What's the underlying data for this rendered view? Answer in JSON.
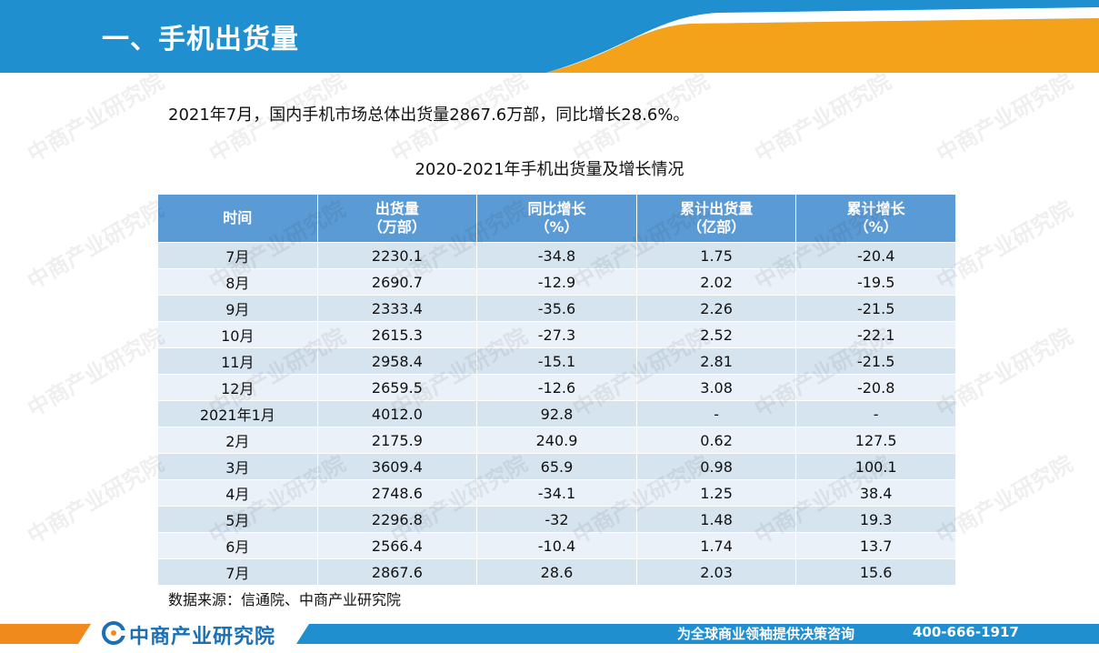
{
  "header": {
    "title": "一、手机出货量"
  },
  "summary": "2021年7月，国内手机市场总体出货量2867.6万部，同比增长28.6%。",
  "table_title": "2020-2021年手机出货量及增长情况",
  "columns": [
    [
      "时间",
      ""
    ],
    [
      "出货量",
      "（万部）"
    ],
    [
      "同比增长",
      "（%）"
    ],
    [
      "累计出货量",
      "（亿部）"
    ],
    [
      "累计增长",
      "（%）"
    ]
  ],
  "rows": [
    [
      "7月",
      "2230.1",
      "-34.8",
      "1.75",
      "-20.4"
    ],
    [
      "8月",
      "2690.7",
      "-12.9",
      "2.02",
      "-19.5"
    ],
    [
      "9月",
      "2333.4",
      "-35.6",
      "2.26",
      "-21.5"
    ],
    [
      "10月",
      "2615.3",
      "-27.3",
      "2.52",
      "-22.1"
    ],
    [
      "11月",
      "2958.4",
      "-15.1",
      "2.81",
      "-21.5"
    ],
    [
      "12月",
      "2659.5",
      "-12.6",
      "3.08",
      "-20.8"
    ],
    [
      "2021年1月",
      "4012.0",
      "92.8",
      "-",
      "-"
    ],
    [
      "2月",
      "2175.9",
      "240.9",
      "0.62",
      "127.5"
    ],
    [
      "3月",
      "3609.4",
      "65.9",
      "0.98",
      "100.1"
    ],
    [
      "4月",
      "2748.6",
      "-34.1",
      "1.25",
      "38.4"
    ],
    [
      "5月",
      "2296.8",
      "-32",
      "1.48",
      "19.3"
    ],
    [
      "6月",
      "2566.4",
      "-10.4",
      "1.74",
      "13.7"
    ],
    [
      "7月",
      "2867.6",
      "28.6",
      "2.03",
      "15.6"
    ]
  ],
  "source": "数据来源：信通院、中商产业研究院",
  "footer": {
    "logo_text": "中商产业研究院",
    "slogan": "为全球商业领袖提供决策咨询",
    "phone": "400-666-1917"
  },
  "watermark_text": "中商产业研究院",
  "colors": {
    "header_blue": "#1f8fcf",
    "header_orange": "#f5a21b",
    "table_header": "#5b9bd5",
    "row_light": "#d6e4f0",
    "row_lighter": "#eaf1f8",
    "footer_blue": "#1f8fcf",
    "footer_orange": "#f08a1c",
    "logo_blue": "#1b6fb3"
  }
}
